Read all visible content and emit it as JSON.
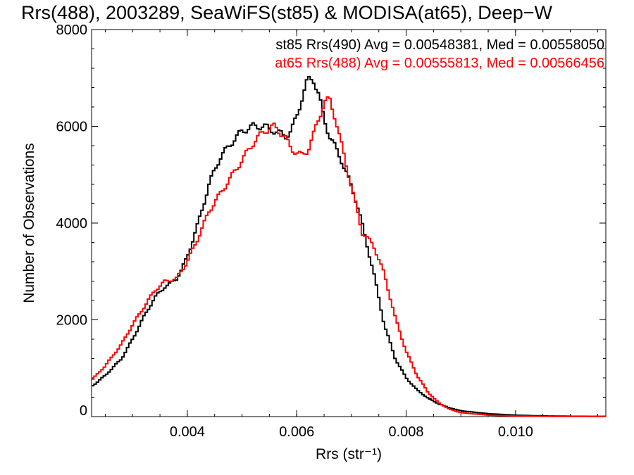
{
  "chart_data": {
    "type": "line",
    "title": "Rrs(488), 2003289, SeaWiFS(st85) & MODISA(at65), Deep−W",
    "xlabel": "Rrs (str⁻¹)",
    "ylabel": "Number of Observations",
    "xlim": [
      0.00225,
      0.01165
    ],
    "ylim": [
      0,
      8000
    ],
    "x_ticks": [
      0.004,
      0.006,
      0.008,
      0.01
    ],
    "x_tick_labels": [
      "0.004",
      "0.006",
      "0.008",
      "0.010"
    ],
    "y_ticks": [
      0,
      2000,
      4000,
      6000,
      8000
    ],
    "y_tick_labels": [
      "0",
      "2000",
      "4000",
      "6000",
      "8000"
    ],
    "grid": false,
    "legend_position": "top-right",
    "series": [
      {
        "legend": "st85 Rrs(490) Avg = 0.00548381, Med = 0.00558050",
        "color": "#000000",
        "step": true,
        "x": [
          0.00225,
          0.0025,
          0.0028,
          0.003,
          0.0032,
          0.0034,
          0.0036,
          0.0037,
          0.0038,
          0.0039,
          0.004,
          0.0042,
          0.0044,
          0.0045,
          0.0046,
          0.0048,
          0.005,
          0.0052,
          0.0054,
          0.0056,
          0.0058,
          0.0059,
          0.006,
          0.0061,
          0.0062,
          0.0063,
          0.0064,
          0.0065,
          0.0066,
          0.0068,
          0.007,
          0.0071,
          0.0072,
          0.0074,
          0.0076,
          0.0078,
          0.008,
          0.0082,
          0.0084,
          0.0086,
          0.0088,
          0.009,
          0.0095,
          0.01,
          0.0105,
          0.011,
          0.01165
        ],
        "values": [
          620,
          850,
          1200,
          1600,
          2050,
          2450,
          2700,
          2750,
          2850,
          3050,
          3300,
          4000,
          4800,
          5100,
          5350,
          5650,
          5900,
          6000,
          6000,
          5900,
          5800,
          5900,
          6200,
          6600,
          6950,
          7000,
          6650,
          6150,
          5800,
          5350,
          4750,
          4400,
          3950,
          3000,
          1900,
          1200,
          800,
          550,
          380,
          260,
          180,
          120,
          60,
          30,
          15,
          8,
          5
        ]
      },
      {
        "legend": "at65 Rrs(488) Avg = 0.00555813, Med = 0.00566456",
        "color": "#ff0000",
        "step": true,
        "x": [
          0.00225,
          0.0025,
          0.0028,
          0.003,
          0.0032,
          0.0034,
          0.0036,
          0.0038,
          0.004,
          0.0042,
          0.0044,
          0.0046,
          0.0048,
          0.005,
          0.0052,
          0.0054,
          0.0056,
          0.0058,
          0.0059,
          0.006,
          0.0061,
          0.0062,
          0.0063,
          0.0064,
          0.0065,
          0.0066,
          0.0067,
          0.0068,
          0.007,
          0.0072,
          0.0074,
          0.0076,
          0.0078,
          0.008,
          0.0082,
          0.0084,
          0.0086,
          0.0088,
          0.009,
          0.0095,
          0.01,
          0.0105,
          0.011,
          0.01165
        ],
        "values": [
          750,
          1050,
          1500,
          1900,
          2250,
          2600,
          2800,
          2850,
          3200,
          3700,
          4250,
          4600,
          4950,
          5300,
          5650,
          5900,
          6000,
          5750,
          5550,
          5450,
          5400,
          5500,
          5800,
          6150,
          6500,
          6550,
          6200,
          5700,
          4750,
          3800,
          3550,
          2950,
          2050,
          1350,
          850,
          500,
          280,
          150,
          80,
          30,
          12,
          6,
          3,
          2
        ]
      }
    ]
  }
}
